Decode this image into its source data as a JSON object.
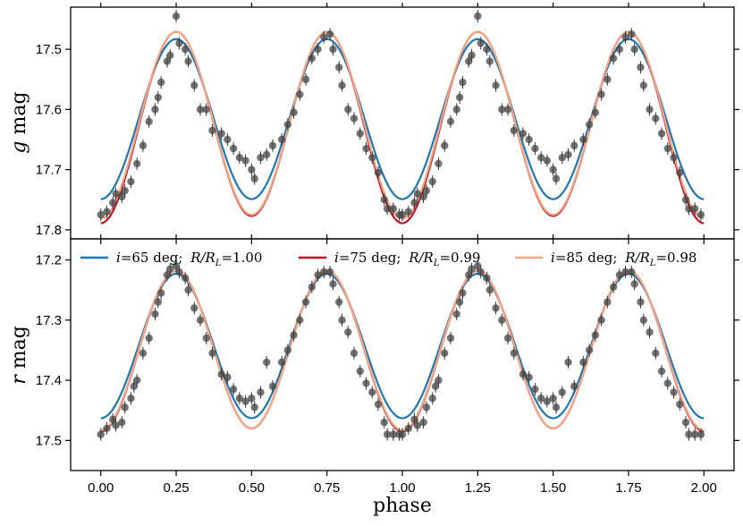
{
  "chart_data": [
    {
      "type": "line",
      "panel": "top",
      "ylabel_var": "g",
      "ylabel_unit": "mag",
      "xlim": [
        -0.1,
        2.1
      ],
      "ylim": [
        17.815,
        17.43
      ],
      "yticks": [
        "17.5",
        "17.6",
        "17.7",
        "17.8"
      ],
      "series": [
        {
          "name": "i=65 deg; R/R_L=1.00",
          "color": "#1f77b4",
          "mean": 17.616,
          "amp": 0.133,
          "min_extra": 0.0
        },
        {
          "name": "i=75 deg; R/R_L=0.99",
          "color": "#c0142b",
          "mean": 17.624,
          "amp": 0.153,
          "min_extra": 0.012
        },
        {
          "name": "i=85 deg; R/R_L=0.98",
          "color": "#f4a582",
          "mean": 17.623,
          "amp": 0.152,
          "min_extra": 0.006
        }
      ],
      "observations": [
        [
          0.0,
          17.775
        ],
        [
          0.02,
          17.77
        ],
        [
          0.04,
          17.755
        ],
        [
          0.05,
          17.74
        ],
        [
          0.07,
          17.745
        ],
        [
          0.08,
          17.735
        ],
        [
          0.1,
          17.72
        ],
        [
          0.12,
          17.69
        ],
        [
          0.14,
          17.66
        ],
        [
          0.16,
          17.62
        ],
        [
          0.18,
          17.6
        ],
        [
          0.19,
          17.58
        ],
        [
          0.2,
          17.555
        ],
        [
          0.22,
          17.52
        ],
        [
          0.23,
          17.51
        ],
        [
          0.25,
          17.445
        ],
        [
          0.26,
          17.49
        ],
        [
          0.28,
          17.5
        ],
        [
          0.29,
          17.52
        ],
        [
          0.31,
          17.56
        ],
        [
          0.33,
          17.6
        ],
        [
          0.35,
          17.6
        ],
        [
          0.37,
          17.635
        ],
        [
          0.4,
          17.64
        ],
        [
          0.42,
          17.65
        ],
        [
          0.44,
          17.665
        ],
        [
          0.46,
          17.68
        ],
        [
          0.48,
          17.685
        ],
        [
          0.5,
          17.7
        ],
        [
          0.51,
          17.715
        ],
        [
          0.53,
          17.68
        ],
        [
          0.55,
          17.675
        ],
        [
          0.57,
          17.66
        ],
        [
          0.6,
          17.65
        ],
        [
          0.62,
          17.625
        ],
        [
          0.64,
          17.605
        ],
        [
          0.66,
          17.575
        ],
        [
          0.68,
          17.55
        ],
        [
          0.7,
          17.515
        ],
        [
          0.72,
          17.5
        ],
        [
          0.74,
          17.48
        ],
        [
          0.76,
          17.475
        ],
        [
          0.77,
          17.5
        ],
        [
          0.79,
          17.53
        ],
        [
          0.8,
          17.56
        ],
        [
          0.82,
          17.6
        ],
        [
          0.84,
          17.615
        ],
        [
          0.86,
          17.64
        ],
        [
          0.88,
          17.665
        ],
        [
          0.9,
          17.68
        ],
        [
          0.92,
          17.705
        ],
        [
          0.94,
          17.75
        ],
        [
          0.95,
          17.765
        ],
        [
          0.97,
          17.765
        ],
        [
          0.99,
          17.775
        ],
        [
          1.0,
          17.775
        ],
        [
          1.02,
          17.77
        ],
        [
          1.04,
          17.755
        ],
        [
          1.05,
          17.74
        ],
        [
          1.07,
          17.745
        ],
        [
          1.08,
          17.735
        ],
        [
          1.1,
          17.72
        ],
        [
          1.12,
          17.69
        ],
        [
          1.14,
          17.66
        ],
        [
          1.16,
          17.62
        ],
        [
          1.18,
          17.6
        ],
        [
          1.19,
          17.58
        ],
        [
          1.2,
          17.555
        ],
        [
          1.22,
          17.52
        ],
        [
          1.23,
          17.51
        ],
        [
          1.25,
          17.445
        ],
        [
          1.26,
          17.49
        ],
        [
          1.28,
          17.5
        ],
        [
          1.29,
          17.52
        ],
        [
          1.31,
          17.56
        ],
        [
          1.33,
          17.6
        ],
        [
          1.35,
          17.6
        ],
        [
          1.37,
          17.635
        ],
        [
          1.4,
          17.64
        ],
        [
          1.42,
          17.65
        ],
        [
          1.44,
          17.665
        ],
        [
          1.46,
          17.68
        ],
        [
          1.48,
          17.685
        ],
        [
          1.5,
          17.7
        ],
        [
          1.51,
          17.715
        ],
        [
          1.53,
          17.68
        ],
        [
          1.55,
          17.675
        ],
        [
          1.57,
          17.66
        ],
        [
          1.6,
          17.65
        ],
        [
          1.62,
          17.625
        ],
        [
          1.64,
          17.605
        ],
        [
          1.66,
          17.575
        ],
        [
          1.68,
          17.55
        ],
        [
          1.7,
          17.515
        ],
        [
          1.72,
          17.5
        ],
        [
          1.74,
          17.48
        ],
        [
          1.76,
          17.475
        ],
        [
          1.77,
          17.5
        ],
        [
          1.79,
          17.53
        ],
        [
          1.8,
          17.56
        ],
        [
          1.82,
          17.6
        ],
        [
          1.84,
          17.615
        ],
        [
          1.86,
          17.64
        ],
        [
          1.88,
          17.665
        ],
        [
          1.9,
          17.68
        ],
        [
          1.92,
          17.705
        ],
        [
          1.94,
          17.75
        ],
        [
          1.95,
          17.765
        ],
        [
          1.97,
          17.765
        ],
        [
          1.99,
          17.775
        ]
      ]
    },
    {
      "type": "line",
      "panel": "bottom",
      "ylabel_var": "r",
      "ylabel_unit": "mag",
      "xlabel": "phase",
      "xlim": [
        -0.1,
        2.1
      ],
      "ylim": [
        17.55,
        17.165
      ],
      "xticks": [
        "0.00",
        "0.25",
        "0.50",
        "0.75",
        "1.00",
        "1.25",
        "1.50",
        "1.75",
        "2.00"
      ],
      "yticks": [
        "17.2",
        "17.3",
        "17.4",
        "17.5"
      ],
      "series": [
        {
          "name": "i=65 deg; R/R_L=1.00",
          "color": "#1f77b4",
          "mean": 17.343,
          "amp": 0.12,
          "min_extra": 0.0
        },
        {
          "name": "i=75 deg; R/R_L=0.99",
          "color": "#c0142b",
          "mean": 17.349,
          "amp": 0.131,
          "min_extra": 0.005
        },
        {
          "name": "i=85 deg; R/R_L=0.98",
          "color": "#f4a582",
          "mean": 17.349,
          "amp": 0.131,
          "min_extra": 0.003
        }
      ],
      "observations": [
        [
          0.0,
          17.49
        ],
        [
          0.02,
          17.48
        ],
        [
          0.04,
          17.465
        ],
        [
          0.05,
          17.475
        ],
        [
          0.07,
          17.47
        ],
        [
          0.08,
          17.445
        ],
        [
          0.1,
          17.43
        ],
        [
          0.11,
          17.41
        ],
        [
          0.12,
          17.4
        ],
        [
          0.14,
          17.355
        ],
        [
          0.16,
          17.33
        ],
        [
          0.18,
          17.29
        ],
        [
          0.19,
          17.27
        ],
        [
          0.2,
          17.255
        ],
        [
          0.22,
          17.225
        ],
        [
          0.23,
          17.215
        ],
        [
          0.25,
          17.21
        ],
        [
          0.26,
          17.22
        ],
        [
          0.28,
          17.23
        ],
        [
          0.29,
          17.25
        ],
        [
          0.31,
          17.28
        ],
        [
          0.33,
          17.3
        ],
        [
          0.35,
          17.33
        ],
        [
          0.37,
          17.355
        ],
        [
          0.4,
          17.39
        ],
        [
          0.42,
          17.395
        ],
        [
          0.44,
          17.415
        ],
        [
          0.46,
          17.43
        ],
        [
          0.48,
          17.435
        ],
        [
          0.5,
          17.43
        ],
        [
          0.51,
          17.445
        ],
        [
          0.53,
          17.42
        ],
        [
          0.55,
          17.37
        ],
        [
          0.57,
          17.41
        ],
        [
          0.6,
          17.37
        ],
        [
          0.62,
          17.35
        ],
        [
          0.64,
          17.325
        ],
        [
          0.66,
          17.3
        ],
        [
          0.68,
          17.27
        ],
        [
          0.7,
          17.245
        ],
        [
          0.72,
          17.225
        ],
        [
          0.74,
          17.22
        ],
        [
          0.76,
          17.22
        ],
        [
          0.77,
          17.24
        ],
        [
          0.79,
          17.27
        ],
        [
          0.8,
          17.3
        ],
        [
          0.82,
          17.32
        ],
        [
          0.84,
          17.355
        ],
        [
          0.86,
          17.385
        ],
        [
          0.88,
          17.405
        ],
        [
          0.9,
          17.42
        ],
        [
          0.92,
          17.44
        ],
        [
          0.94,
          17.47
        ],
        [
          0.95,
          17.49
        ],
        [
          0.97,
          17.49
        ],
        [
          0.99,
          17.49
        ],
        [
          1.0,
          17.49
        ],
        [
          1.02,
          17.48
        ],
        [
          1.04,
          17.465
        ],
        [
          1.05,
          17.475
        ],
        [
          1.07,
          17.47
        ],
        [
          1.08,
          17.445
        ],
        [
          1.1,
          17.43
        ],
        [
          1.11,
          17.41
        ],
        [
          1.12,
          17.4
        ],
        [
          1.14,
          17.355
        ],
        [
          1.16,
          17.33
        ],
        [
          1.18,
          17.29
        ],
        [
          1.19,
          17.27
        ],
        [
          1.2,
          17.255
        ],
        [
          1.22,
          17.225
        ],
        [
          1.23,
          17.215
        ],
        [
          1.25,
          17.21
        ],
        [
          1.26,
          17.22
        ],
        [
          1.28,
          17.23
        ],
        [
          1.29,
          17.25
        ],
        [
          1.31,
          17.28
        ],
        [
          1.33,
          17.3
        ],
        [
          1.35,
          17.33
        ],
        [
          1.37,
          17.355
        ],
        [
          1.4,
          17.39
        ],
        [
          1.42,
          17.395
        ],
        [
          1.44,
          17.415
        ],
        [
          1.46,
          17.43
        ],
        [
          1.48,
          17.435
        ],
        [
          1.5,
          17.43
        ],
        [
          1.51,
          17.445
        ],
        [
          1.53,
          17.42
        ],
        [
          1.55,
          17.37
        ],
        [
          1.57,
          17.41
        ],
        [
          1.6,
          17.37
        ],
        [
          1.62,
          17.35
        ],
        [
          1.64,
          17.325
        ],
        [
          1.66,
          17.3
        ],
        [
          1.68,
          17.27
        ],
        [
          1.7,
          17.245
        ],
        [
          1.72,
          17.225
        ],
        [
          1.74,
          17.22
        ],
        [
          1.76,
          17.22
        ],
        [
          1.77,
          17.24
        ],
        [
          1.79,
          17.27
        ],
        [
          1.8,
          17.3
        ],
        [
          1.82,
          17.32
        ],
        [
          1.84,
          17.355
        ],
        [
          1.86,
          17.385
        ],
        [
          1.88,
          17.405
        ],
        [
          1.9,
          17.42
        ],
        [
          1.92,
          17.44
        ],
        [
          1.94,
          17.47
        ],
        [
          1.95,
          17.49
        ],
        [
          1.97,
          17.49
        ],
        [
          1.99,
          17.49
        ]
      ]
    }
  ],
  "legend": [
    {
      "i_var": "i",
      "eq": "=",
      "i_val": "65",
      "i_unit": "deg;",
      "r_var": "R/R",
      "r_sub": "L",
      "r_val": "=1.00",
      "color": "#1f77b4"
    },
    {
      "i_var": "i",
      "eq": "=",
      "i_val": "75",
      "i_unit": "deg;",
      "r_var": "R/R",
      "r_sub": "L",
      "r_val": "=0.99",
      "color": "#c0142b"
    },
    {
      "i_var": "i",
      "eq": "=",
      "i_val": "85",
      "i_unit": "deg;",
      "r_var": "R/R",
      "r_sub": "L",
      "r_val": "=0.98",
      "color": "#f4a582"
    }
  ]
}
